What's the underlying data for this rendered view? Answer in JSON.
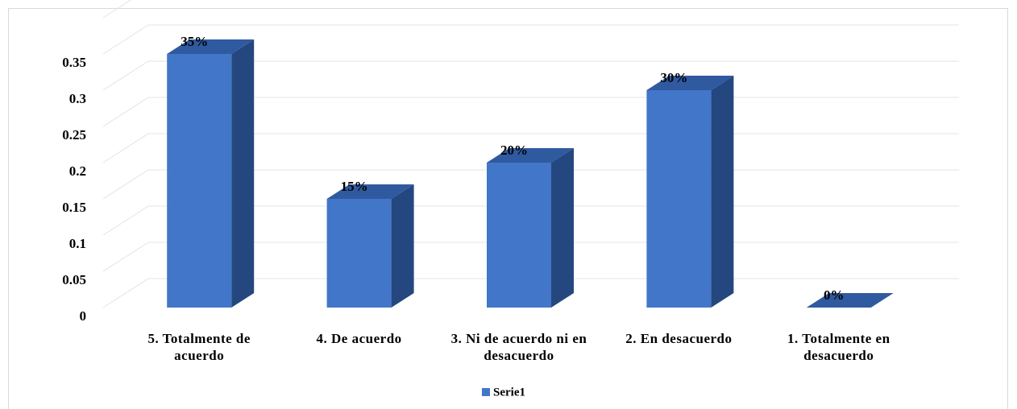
{
  "chart_data": {
    "type": "bar3d",
    "categories": [
      "5. Totalmente de acuerdo",
      "4. De acuerdo",
      "3. Ni de acuerdo ni en desacuerdo",
      "2. En desacuerdo",
      "1. Totalmente en desacuerdo"
    ],
    "series": [
      {
        "name": "Serie1",
        "color": "#4276c8",
        "values": [
          0.35,
          0.15,
          0.2,
          0.3,
          0
        ],
        "value_labels": [
          "35%",
          "15%",
          "20%",
          "30%",
          "0%"
        ]
      }
    ],
    "ylim": [
      0,
      0.4
    ],
    "yticks": [
      0,
      0.05,
      0.1,
      0.15,
      0.2,
      0.25,
      0.3,
      0.35
    ],
    "grid": true,
    "legend": "bottom"
  }
}
